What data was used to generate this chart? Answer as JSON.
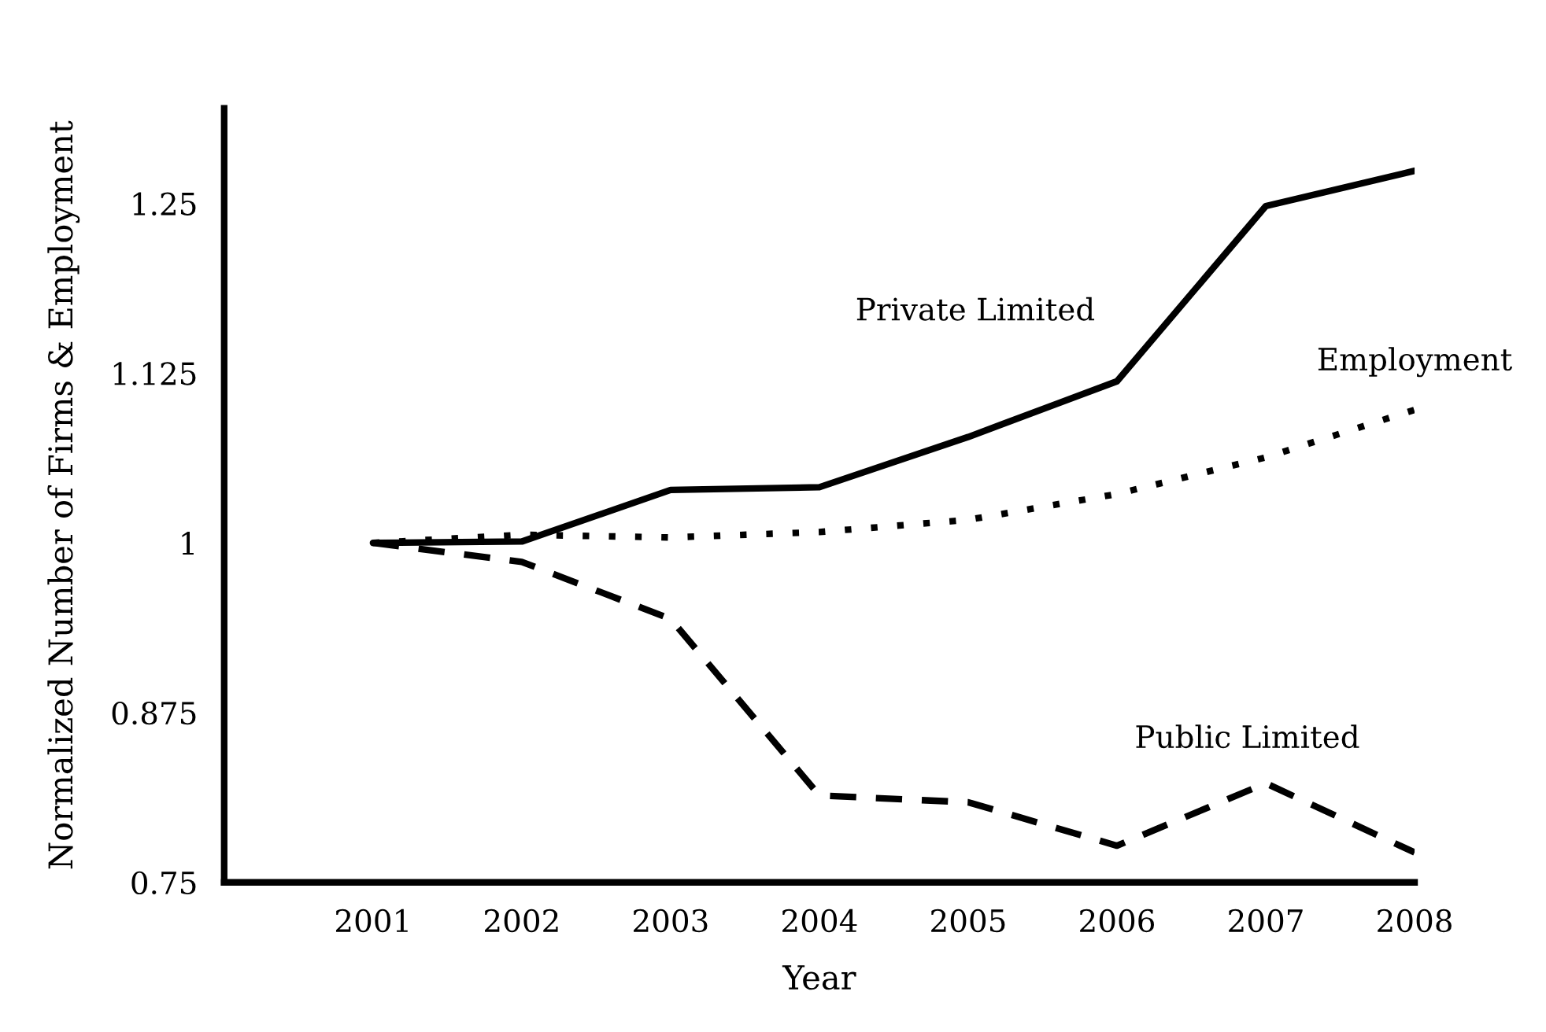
{
  "chart_data": {
    "type": "line",
    "xlabel": "Year",
    "ylabel": "Normalized Number of Firms & Employment",
    "x": [
      2001,
      2002,
      2003,
      2004,
      2005,
      2006,
      2007,
      2008
    ],
    "series": [
      {
        "name": "Private Limited",
        "color": "#000000",
        "line_style": "solid",
        "values": [
          1,
          1.001,
          1.039,
          1.041,
          1.078,
          1.119,
          1.248,
          1.274
        ]
      },
      {
        "name": "Employment",
        "color": "#000000",
        "line_style": "dotted",
        "values": [
          1,
          1.006,
          1.004,
          1.008,
          1.017,
          1.036,
          1.063,
          1.098
        ]
      },
      {
        "name": "Public Limited",
        "color": "#000000",
        "line_style": "dashed",
        "values": [
          1,
          0.986,
          0.944,
          0.814,
          0.809,
          0.777,
          0.823,
          0.772
        ]
      }
    ],
    "xlim": [
      2000,
      2008
    ],
    "xticks": [
      2001,
      2002,
      2003,
      2004,
      2005,
      2006,
      2007,
      2008
    ],
    "ylim": [
      0.75,
      1.32
    ],
    "yticks": [
      0.75,
      0.875,
      1,
      1.125,
      1.25
    ],
    "grid": false,
    "legend": false,
    "marker": "none"
  }
}
